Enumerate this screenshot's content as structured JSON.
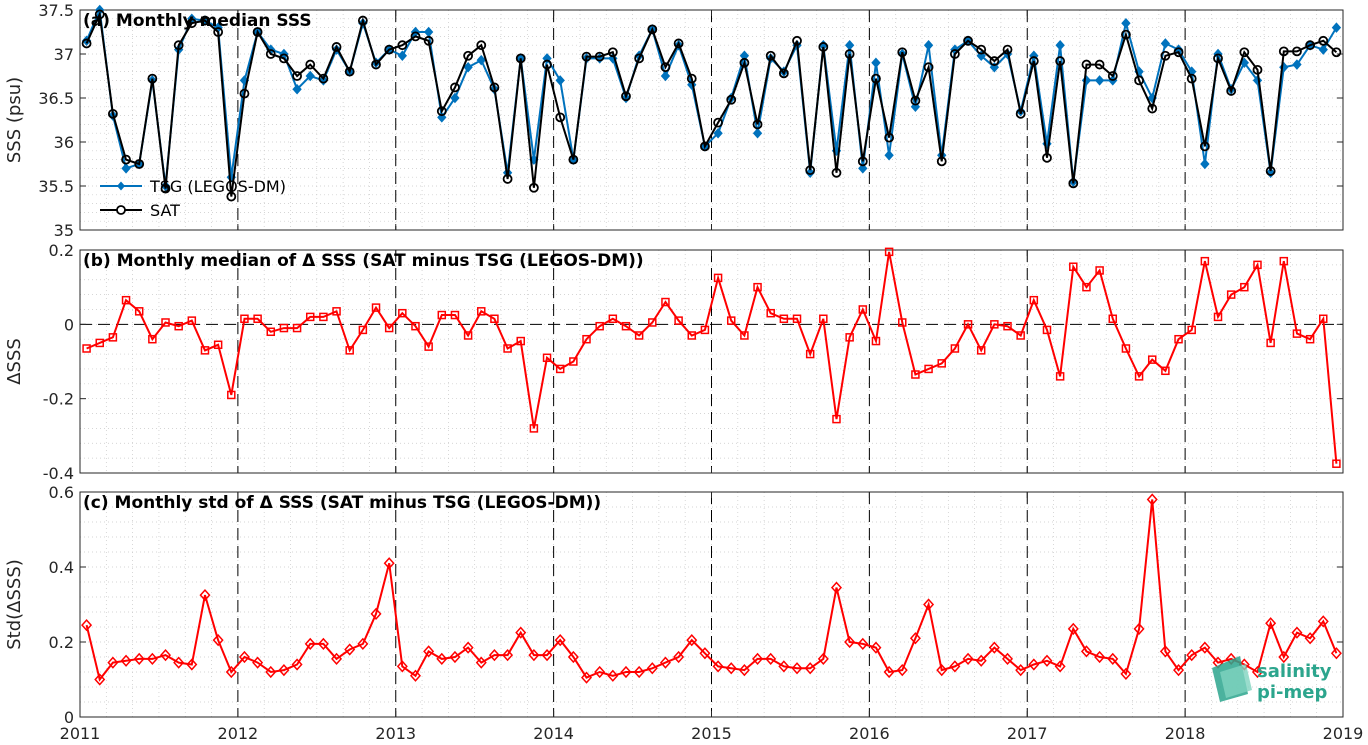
{
  "chart_data": [
    {
      "type": "line",
      "title": "(a) Monthly median SSS",
      "ylabel": "SSS (psu)",
      "ylim": [
        35,
        37.5
      ],
      "yticks": [
        "35",
        "35.5",
        "36",
        "36.5",
        "37",
        "37.5"
      ],
      "legend_position": "bottom-left",
      "grid": true,
      "series": [
        {
          "name": "TSG (LEGOS-DM)",
          "color": "#0072BD",
          "marker": "diamond-filled",
          "values": [
            37.15,
            37.5,
            36.3,
            35.7,
            35.75,
            36.7,
            35.5,
            37.05,
            37.4,
            37.38,
            37.3,
            35.6,
            36.7,
            37.25,
            37.05,
            37.0,
            36.6,
            36.75,
            36.7,
            37.05,
            36.8,
            37.35,
            36.9,
            37.05,
            36.98,
            37.25,
            37.25,
            36.28,
            36.5,
            36.85,
            36.93,
            36.6,
            35.65,
            36.95,
            35.8,
            36.95,
            36.7,
            35.8,
            36.95,
            36.95,
            36.95,
            36.5,
            36.98,
            37.28,
            36.75,
            37.1,
            36.65,
            35.95,
            36.1,
            36.5,
            36.98,
            36.1,
            36.95,
            36.8,
            37.1,
            35.65,
            37.1,
            35.9,
            37.1,
            35.7,
            36.9,
            35.85,
            37.0,
            36.4,
            37.1,
            35.85,
            37.05,
            37.15,
            36.98,
            36.85,
            37.0,
            36.35,
            36.98,
            35.98,
            37.1,
            35.55,
            36.7,
            36.7,
            36.7,
            37.35,
            36.8,
            36.5,
            37.12,
            37.05,
            36.8,
            35.75,
            37.0,
            36.6,
            36.9,
            36.7,
            35.65,
            36.85,
            36.88,
            37.1,
            37.05,
            37.3
          ]
        },
        {
          "name": "SAT",
          "color": "#000000",
          "marker": "circle-open",
          "values": [
            37.12,
            37.45,
            36.32,
            35.8,
            35.75,
            36.72,
            35.47,
            37.1,
            37.35,
            37.38,
            37.25,
            35.38,
            36.55,
            37.25,
            37.0,
            36.95,
            36.75,
            36.88,
            36.72,
            37.08,
            36.8,
            37.38,
            36.88,
            37.05,
            37.1,
            37.2,
            37.15,
            36.35,
            36.62,
            36.98,
            37.1,
            36.62,
            35.58,
            36.95,
            35.48,
            36.88,
            36.28,
            35.8,
            36.97,
            36.97,
            37.02,
            36.52,
            36.95,
            37.28,
            36.85,
            37.12,
            36.72,
            35.95,
            36.22,
            36.48,
            36.9,
            36.2,
            36.98,
            36.78,
            37.15,
            35.68,
            37.08,
            35.65,
            37.0,
            35.78,
            36.72,
            36.05,
            37.02,
            36.47,
            36.85,
            35.78,
            37.0,
            37.15,
            37.05,
            36.92,
            37.05,
            36.32,
            36.92,
            35.82,
            36.92,
            35.53,
            36.88,
            36.88,
            36.75,
            37.22,
            36.7,
            36.38,
            36.98,
            37.02,
            36.72,
            35.95,
            36.95,
            36.58,
            37.02,
            36.82,
            35.67,
            37.03,
            37.03,
            37.1,
            37.15,
            37.02
          ]
        }
      ]
    },
    {
      "type": "line",
      "title": "(b) Monthly median of Δ SSS (SAT minus TSG (LEGOS-DM))",
      "ylabel": "ΔSSS",
      "ylim": [
        -0.4,
        0.2
      ],
      "yticks": [
        "-0.4",
        "-0.2",
        "0",
        "0.2"
      ],
      "grid": true,
      "series": [
        {
          "color": "#FF0000",
          "marker": "square-open",
          "values": [
            -0.065,
            -0.05,
            -0.035,
            0.065,
            0.035,
            -0.04,
            0.005,
            -0.005,
            0.01,
            -0.07,
            -0.055,
            -0.19,
            0.015,
            0.015,
            -0.02,
            -0.01,
            -0.01,
            0.02,
            0.02,
            0.035,
            -0.07,
            -0.015,
            0.045,
            -0.01,
            0.03,
            -0.005,
            -0.06,
            0.025,
            0.025,
            -0.03,
            0.035,
            0.015,
            -0.065,
            -0.045,
            -0.28,
            -0.09,
            -0.12,
            -0.1,
            -0.04,
            -0.005,
            0.015,
            -0.005,
            -0.03,
            0.005,
            0.06,
            0.01,
            -0.03,
            -0.015,
            0.125,
            0.01,
            -0.03,
            0.1,
            0.03,
            0.015,
            0.015,
            -0.08,
            0.015,
            -0.255,
            -0.035,
            0.04,
            -0.045,
            0.195,
            0.005,
            -0.135,
            -0.12,
            -0.105,
            -0.065,
            0.0,
            -0.07,
            -0.0,
            -0.005,
            -0.03,
            0.065,
            -0.015,
            -0.14,
            0.155,
            0.1,
            0.145,
            0.015,
            -0.065,
            -0.14,
            -0.095,
            -0.125,
            -0.04,
            -0.015,
            0.17,
            0.02,
            0.08,
            0.1,
            0.16,
            -0.05,
            0.17,
            -0.025,
            -0.04,
            0.015,
            -0.375
          ]
        }
      ]
    },
    {
      "type": "line",
      "title": "(c) Monthly std of Δ SSS (SAT minus TSG (LEGOS-DM))",
      "ylabel": "Std(ΔSSS)",
      "ylim": [
        0,
        0.6
      ],
      "yticks": [
        "0",
        "0.2",
        "0.4",
        "0.6"
      ],
      "xticks": [
        "2011",
        "2012",
        "2013",
        "2014",
        "2015",
        "2016",
        "2017",
        "2018",
        "2019"
      ],
      "grid": true,
      "series": [
        {
          "color": "#FF0000",
          "marker": "diamond-open",
          "values": [
            0.245,
            0.1,
            0.145,
            0.15,
            0.155,
            0.155,
            0.165,
            0.145,
            0.14,
            0.325,
            0.205,
            0.12,
            0.16,
            0.145,
            0.12,
            0.125,
            0.14,
            0.195,
            0.195,
            0.155,
            0.18,
            0.195,
            0.275,
            0.41,
            0.135,
            0.11,
            0.175,
            0.155,
            0.16,
            0.185,
            0.145,
            0.165,
            0.165,
            0.225,
            0.165,
            0.165,
            0.205,
            0.16,
            0.105,
            0.12,
            0.11,
            0.12,
            0.12,
            0.13,
            0.145,
            0.16,
            0.205,
            0.17,
            0.135,
            0.13,
            0.125,
            0.155,
            0.155,
            0.135,
            0.13,
            0.13,
            0.155,
            0.345,
            0.2,
            0.195,
            0.185,
            0.12,
            0.125,
            0.21,
            0.3,
            0.125,
            0.135,
            0.155,
            0.15,
            0.185,
            0.155,
            0.125,
            0.14,
            0.15,
            0.135,
            0.235,
            0.175,
            0.16,
            0.155,
            0.115,
            0.235,
            0.58,
            0.175,
            0.125,
            0.165,
            0.185,
            0.145,
            0.155,
            0.14,
            0.12,
            0.25,
            0.16,
            0.225,
            0.21,
            0.255,
            0.17
          ]
        }
      ]
    }
  ],
  "logo": {
    "line1": "salinity",
    "line2": "pi-mep",
    "color": "#2ca58d"
  }
}
